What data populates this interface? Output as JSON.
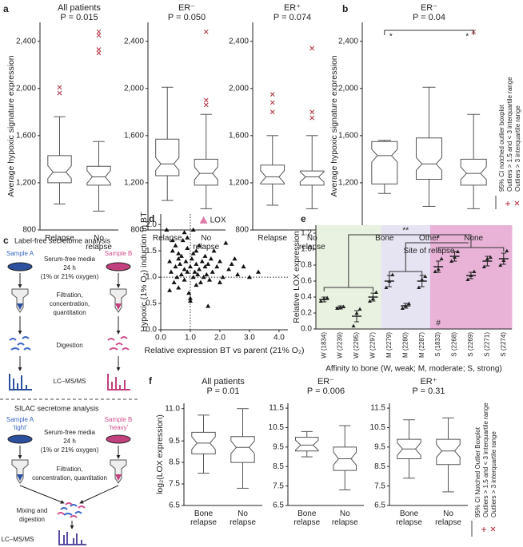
{
  "panel_labels": [
    "a",
    "b",
    "c",
    "d",
    "e",
    "f"
  ],
  "legend_ab": {
    "title": "95% CI notched outlier boxplot",
    "mild": "Outliers > 1.5 and < 3 interquartile range",
    "extreme": "Outliers > 3 interquartile range"
  },
  "legend_f": {
    "title": "95% CI Notched Outlier Boxplot",
    "mild": "Outliers > 1.5 and < 3 interquartile range",
    "extreme": "Outliers > 3 interquartile range"
  },
  "diagram": {
    "label_free": {
      "title": "Label-free secretome analysis",
      "sample_a": "Sample A",
      "sample_b": "Sample B",
      "media": [
        "Serum-free media",
        "24 h",
        "(1% or 21% oxygen)"
      ],
      "filtration": [
        "Filtration,",
        "concentration,",
        "quantitation"
      ],
      "digestion": "Digestion",
      "ms": "LC–MS/MS"
    },
    "silac": {
      "title": "SILAC secretome analysis",
      "sample_a": "Sample A",
      "light": "‘light’",
      "sample_b": "Sample B",
      "heavy": "‘heavy’",
      "media": [
        "Serum-free media",
        "24 h",
        "(1% or 21% oxygen)"
      ],
      "filtration": [
        "Filtration,",
        "concentration, quantitation"
      ],
      "mixing": [
        "Mixing and",
        "digestion"
      ],
      "ms": "LC–MS/MS"
    }
  },
  "chart_data": [
    {
      "type": "box",
      "title": "All patients",
      "subtitle": "P = 0.015",
      "ylabel": "Average hypoxic signature expression",
      "categories": [
        "Relapse",
        "No relapse"
      ],
      "boxes": [
        {
          "q1": 1200,
          "median": 1290,
          "q3": 1430,
          "whisker_low": 1020,
          "whisker_high": 1760,
          "outliers": [
            1960,
            2010
          ]
        },
        {
          "q1": 1180,
          "median": 1250,
          "q3": 1340,
          "whisker_low": 960,
          "whisker_high": 1550,
          "outliers": [
            2480,
            2450,
            2330,
            2300
          ]
        }
      ],
      "ylim": [
        800,
        2560
      ],
      "yticks": [
        800,
        {
          "value": 1200,
          "label": "1,200"
        },
        {
          "value": 1600,
          "label": "1,600"
        },
        {
          "value": 2000,
          "label": "2,000"
        },
        {
          "value": 2400,
          "label": "2,400"
        }
      ],
      "color": "#555555",
      "outlier_color": "#b03040"
    },
    {
      "type": "box",
      "title": "ER⁻",
      "subtitle": "P = 0.050",
      "categories": [
        "Relapse",
        "No relapse"
      ],
      "boxes": [
        {
          "q1": 1260,
          "median": 1360,
          "q3": 1570,
          "whisker_low": 1050,
          "whisker_high": 2010,
          "outliers": []
        },
        {
          "q1": 1180,
          "median": 1280,
          "q3": 1400,
          "whisker_low": 980,
          "whisker_high": 1780,
          "outliers": [
            2480,
            1900,
            1860
          ]
        }
      ],
      "ylim": [
        800,
        2560
      ],
      "yticks": [
        800,
        {
          "value": 1200,
          "label": "1,200"
        },
        {
          "value": 1600,
          "label": "1,600"
        },
        {
          "value": 2000,
          "label": "2,000"
        },
        {
          "value": 2400,
          "label": "2,400"
        }
      ],
      "color": "#555555",
      "outlier_color": "#b03040"
    },
    {
      "type": "box",
      "title": "ER⁺",
      "subtitle": "P = 0.074",
      "categories": [
        "Relapse",
        "No relapse"
      ],
      "boxes": [
        {
          "q1": 1190,
          "median": 1250,
          "q3": 1350,
          "whisker_low": 1010,
          "whisker_high": 1600,
          "outliers": [
            1950,
            1880,
            1800
          ]
        },
        {
          "q1": 1180,
          "median": 1250,
          "q3": 1300,
          "whisker_low": 980,
          "whisker_high": 1600,
          "outliers": [
            2340,
            1800,
            1750
          ]
        }
      ],
      "ylim": [
        800,
        2560
      ],
      "yticks": [
        800,
        {
          "value": 1200,
          "label": "1,200"
        },
        {
          "value": 1600,
          "label": "1,600"
        },
        {
          "value": 2000,
          "label": "2,000"
        },
        {
          "value": 2400,
          "label": "2,400"
        }
      ],
      "color": "#555555",
      "outlier_color": "#b03040"
    },
    {
      "type": "box",
      "title": "ER⁻",
      "subtitle": "P = 0.04",
      "ylabel": "Average hypoxic signature expression",
      "xlabel": "Site of relapse",
      "categories": [
        "Bone",
        "Other",
        "None"
      ],
      "boxes": [
        {
          "q1": 1190,
          "median": 1430,
          "q3": 1550,
          "whisker_low": 1110,
          "whisker_high": 1560,
          "outliers": []
        },
        {
          "q1": 1230,
          "median": 1360,
          "q3": 1580,
          "whisker_low": 1000,
          "whisker_high": 2010,
          "outliers": []
        },
        {
          "q1": 1180,
          "median": 1280,
          "q3": 1400,
          "whisker_low": 980,
          "whisker_high": 1780,
          "outliers": [
            2480
          ]
        }
      ],
      "annotations": [
        "*",
        "*"
      ],
      "ylim": [
        800,
        2560
      ],
      "yticks": [
        800,
        {
          "value": 1200,
          "label": "1,200"
        },
        {
          "value": 1600,
          "label": "1,600"
        },
        {
          "value": 2000,
          "label": "2,000"
        },
        {
          "value": 2400,
          "label": "2,400"
        }
      ],
      "color": "#555555",
      "outlier_color": "#b03040"
    },
    {
      "type": "scatter",
      "xlabel": "Relative expression BT vs parent (21% O₂)",
      "ylabel": "Hypoxic (1% O₂) induction in BT",
      "x": [
        0.2,
        0.3,
        0.35,
        0.4,
        0.45,
        0.5,
        0.5,
        0.55,
        0.6,
        0.6,
        0.65,
        0.7,
        0.7,
        0.75,
        0.8,
        0.8,
        0.85,
        0.9,
        0.9,
        0.95,
        1.0,
        1.0,
        1.05,
        1.1,
        1.1,
        1.15,
        1.2,
        1.2,
        1.25,
        1.3,
        1.3,
        1.35,
        1.4,
        1.45,
        1.5,
        1.5,
        1.55,
        1.6,
        1.65,
        1.7,
        1.75,
        1.8,
        1.9,
        2.0,
        2.1,
        2.2,
        2.3,
        2.4,
        2.6,
        2.8,
        3.0,
        3.3,
        0.4,
        0.6,
        0.8,
        1.0,
        1.2,
        1.6,
        2.0,
        0.3,
        0.9,
        1.1,
        2.5
      ],
      "y": [
        1.9,
        1.3,
        1.1,
        1.5,
        0.9,
        1.2,
        1.6,
        1.0,
        1.35,
        0.8,
        1.25,
        1.4,
        1.05,
        1.7,
        1.15,
        0.95,
        1.3,
        1.1,
        1.55,
        0.7,
        1.2,
        0.55,
        1.35,
        1.0,
        1.45,
        1.1,
        1.25,
        0.85,
        1.05,
        1.6,
        1.15,
        0.9,
        1.3,
        1.0,
        1.4,
        1.2,
        1.05,
        1.25,
        0.95,
        1.35,
        1.1,
        1.5,
        1.2,
        1.3,
        1.0,
        1.65,
        1.15,
        1.25,
        1.05,
        1.2,
        1.0,
        1.1,
        1.7,
        1.45,
        1.85,
        0.6,
        1.5,
        0.45,
        0.9,
        0.75,
        1.75,
        1.9,
        1.35
      ],
      "color": "#111111",
      "highlight": {
        "label": "LOX",
        "x": 1.45,
        "y": 2.08,
        "color": "#e07aa8"
      },
      "ref_x": 1,
      "ref_y": 1,
      "xlim": [
        0,
        4.3
      ],
      "ylim": [
        0,
        2.2
      ],
      "xticks": [
        {
          "value": 0,
          "label": "0.0"
        },
        {
          "value": 1,
          "label": "1.0"
        },
        {
          "value": 2,
          "label": "2.0"
        },
        {
          "value": 3,
          "label": "3.0"
        },
        {
          "value": 4,
          "label": "4.0"
        }
      ],
      "yticks": [
        {
          "value": 0,
          "label": "0.0"
        },
        0.5,
        {
          "value": 1,
          "label": "1.0"
        },
        1.5,
        {
          "value": 2,
          "label": "2.0"
        }
      ]
    },
    {
      "type": "dot_error",
      "ylabel": "Relative LOX expression",
      "xlabel": "Affinity to bone (W, weak; M, moderate; S, strong)",
      "categories": [
        "W (1834)",
        "W (2239)",
        "W (2295)",
        "W (2297)",
        "M (2279)",
        "M (2280)",
        "M (2287)",
        "S (1833)",
        "S (2268)",
        "S (2269)",
        "S (2271)",
        "S (2274)"
      ],
      "means": [
        0.37,
        0.27,
        0.16,
        0.4,
        0.6,
        0.29,
        0.6,
        0.78,
        0.91,
        0.67,
        0.85,
        0.88
      ],
      "errors": [
        0.03,
        0.02,
        0.07,
        0.05,
        0.07,
        0.03,
        0.07,
        0.07,
        0.06,
        0.04,
        0.06,
        0.07
      ],
      "points": [
        [
          0.35,
          0.38,
          0.39
        ],
        [
          0.26,
          0.27,
          0.28
        ],
        [
          0.04,
          0.2,
          0.25
        ],
        [
          0.35,
          0.38,
          0.46
        ],
        [
          0.52,
          0.6,
          0.68
        ],
        [
          0.26,
          0.29,
          0.32
        ],
        [
          0.52,
          0.62,
          0.66
        ],
        [
          0.72,
          0.75,
          0.88
        ],
        [
          0.85,
          0.9,
          0.97
        ],
        [
          0.62,
          0.67,
          0.72
        ],
        [
          0.78,
          0.88,
          0.9
        ],
        [
          0.8,
          0.86,
          0.98
        ]
      ],
      "category_colors": [
        "#e9f2e1",
        "#e9f2e1",
        "#e9f2e1",
        "#e9f2e1",
        "#e6e3f3",
        "#e6e3f3",
        "#e6e3f3",
        "#e9b3d8",
        "#e9b3d8",
        "#e9b3d8",
        "#e9b3d8",
        "#e9b3d8"
      ],
      "annotations": [
        "**",
        "*",
        "#"
      ],
      "color": "#222222",
      "ylim": [
        0,
        1.3
      ],
      "yticks": [
        {
          "value": 0,
          "label": "0.0"
        },
        0.2,
        0.4,
        0.6,
        0.8,
        {
          "value": 1,
          "label": "1.0"
        },
        1.2
      ]
    },
    {
      "type": "box",
      "title": "All patients",
      "subtitle": "P = 0.01",
      "ylabel": "log₂(LOX expression)",
      "categories": [
        "Bone relapse",
        "No relapse"
      ],
      "boxes": [
        {
          "q1": 8.9,
          "median": 9.4,
          "q3": 9.9,
          "whisker_low": 8.0,
          "whisker_high": 10.7,
          "outliers": []
        },
        {
          "q1": 8.5,
          "median": 9.2,
          "q3": 9.7,
          "whisker_low": 7.3,
          "whisker_high": 11.0,
          "outliers": []
        }
      ],
      "ylim": [
        6.5,
        11.25
      ],
      "yticks": [
        6.5,
        7.5,
        8.5,
        9.5,
        {
          "value": 11,
          "label": "11.0"
        }
      ],
      "color": "#555555",
      "outlier_color": "#b03040"
    },
    {
      "type": "box",
      "title": "ER⁻",
      "subtitle": "P = 0.006",
      "categories": [
        "Bone relapse",
        "No relapse"
      ],
      "boxes": [
        {
          "q1": 9.3,
          "median": 9.6,
          "q3": 10.0,
          "whisker_low": 9.0,
          "whisker_high": 10.3,
          "outliers": []
        },
        {
          "q1": 8.3,
          "median": 8.9,
          "q3": 9.5,
          "whisker_low": 7.3,
          "whisker_high": 10.6,
          "outliers": []
        }
      ],
      "ylim": [
        6.5,
        11.75
      ],
      "yticks": [
        6.5,
        7.5,
        8.5,
        9.5,
        10.5,
        11.5
      ],
      "color": "#555555",
      "outlier_color": "#b03040"
    },
    {
      "type": "box",
      "title": "ER⁺",
      "subtitle": "P = 0.31",
      "categories": [
        "Bone relapse",
        "No relapse"
      ],
      "boxes": [
        {
          "q1": 8.9,
          "median": 9.4,
          "q3": 9.9,
          "whisker_low": 7.9,
          "whisker_high": 10.9,
          "outliers": []
        },
        {
          "q1": 8.6,
          "median": 9.3,
          "q3": 9.9,
          "whisker_low": 7.2,
          "whisker_high": 11.0,
          "outliers": []
        }
      ],
      "ylim": [
        6.5,
        11.75
      ],
      "yticks": [
        6.5,
        7.5,
        8.5,
        9.5,
        10.5,
        11.5
      ],
      "color": "#555555",
      "outlier_color": "#b03040"
    }
  ]
}
